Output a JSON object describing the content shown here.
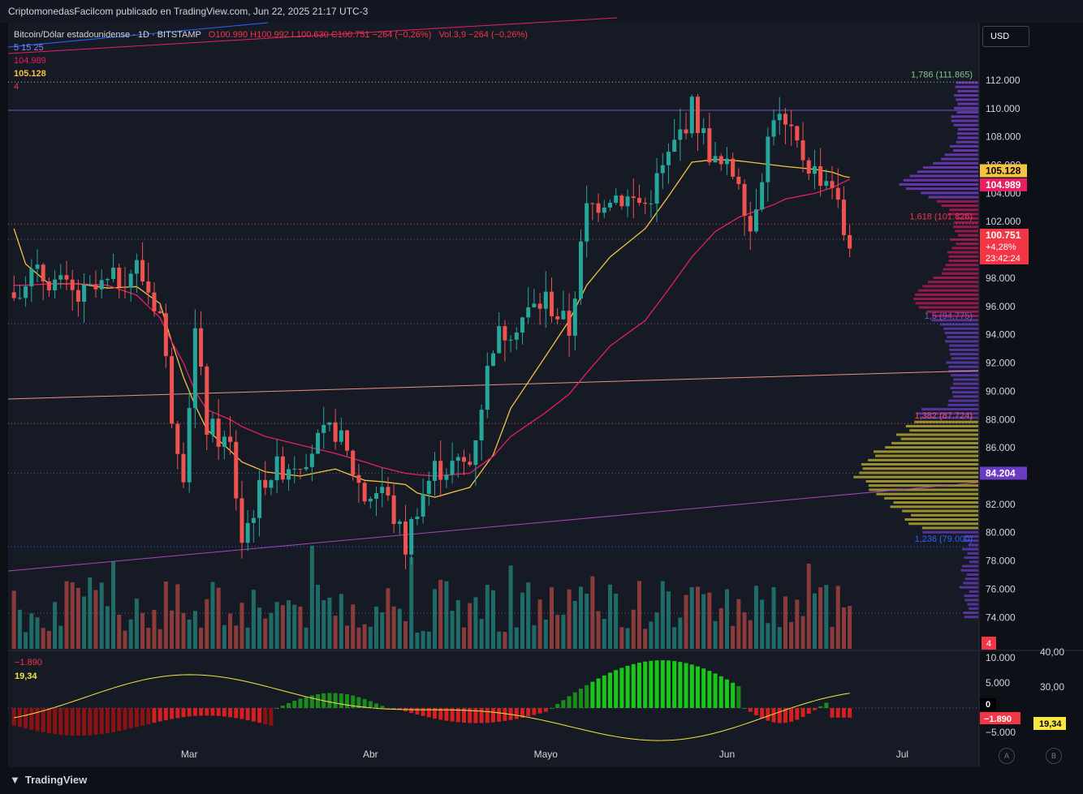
{
  "header": {
    "published_text": "CriptomonedasFacilcom publicado en TradingView.com, Jun 22, 2025 21:17 UTC-3"
  },
  "legend": {
    "symbol": "Bitcoin/Dólar estadounidense · 1D · BITSTAMP",
    "ohlc": "O100.990  H100.992  L100.630  C100.751  −264 (−0,26%)",
    "volume": "Vol.3,9  −264 (−0,26%)",
    "indicator_params": "5  15  25",
    "ma_slow_value": "104.989",
    "ma_fast_value": "105.128",
    "extra_value": "4"
  },
  "currency_button": "USD",
  "price_axis": {
    "ticks": [
      "112.000",
      "110.000",
      "108.000",
      "106.000",
      "104.000",
      "102.000",
      "100.000",
      "98.000",
      "96.000",
      "94.000",
      "92.000",
      "90.000",
      "88.000",
      "86.000",
      "84.000",
      "82.000",
      "80.000",
      "78.000",
      "76.000",
      "74.000"
    ],
    "badges": {
      "ma_fast": "105.128",
      "ma_slow": "104.989",
      "last_price": "100.751",
      "last_change": "+4,28%",
      "countdown": "23:42:24",
      "poc": "84.204",
      "extra": "4"
    }
  },
  "fib_levels": [
    {
      "label": "1,786 (111.865)",
      "value": 111865,
      "color": "#81c784"
    },
    {
      "label": "1,618 (101.826)",
      "value": 101826,
      "color": "#f23645"
    },
    {
      "label": "1,5 (94.775)",
      "value": 94775,
      "color": "#7e57c2"
    },
    {
      "label": "1,382 (87.724)",
      "value": 87724,
      "color": "#f7525f"
    },
    {
      "label": "1,236 (79.000)",
      "value": 79000,
      "color": "#2962ff"
    }
  ],
  "time_axis": [
    "Mar",
    "Abr",
    "Mayo",
    "Jun",
    "Jul"
  ],
  "oscillator": {
    "value_label": "−1.890",
    "signal_label": "19,34",
    "axis_left": [
      "10.000",
      "5.000",
      "0",
      "−5.000"
    ],
    "axis_right": [
      "40,00",
      "30,00"
    ],
    "badge_value": "−1.890",
    "badge_signal": "19,34",
    "badge_zero": "0"
  },
  "footer": {
    "brand": "TradingView",
    "scale_a": "A",
    "scale_b": "B"
  },
  "colors": {
    "up": "#26a69a",
    "down": "#ef5350",
    "ma_fast": "#f5c342",
    "ma_slow": "#e91e63",
    "bg": "#161a25"
  },
  "chart_data": {
    "type": "candlestick",
    "title": "Bitcoin/Dólar estadounidense · 1D · BITSTAMP",
    "ylim": [
      73500,
      112800
    ],
    "x": [
      "2025-01-30",
      "2025-02-01",
      "2025-02-05",
      "2025-02-10",
      "2025-02-15",
      "2025-02-20",
      "2025-02-24",
      "2025-02-26",
      "2025-02-28",
      "2025-03-02",
      "2025-03-04",
      "2025-03-08",
      "2025-03-10",
      "2025-03-14",
      "2025-03-20",
      "2025-03-26",
      "2025-03-31",
      "2025-04-03",
      "2025-04-07",
      "2025-04-09",
      "2025-04-12",
      "2025-04-18",
      "2025-04-22",
      "2025-04-25",
      "2025-05-01",
      "2025-05-05",
      "2025-05-08",
      "2025-05-12",
      "2025-05-18",
      "2025-05-22",
      "2025-05-26",
      "2025-05-30",
      "2025-06-03",
      "2025-06-05",
      "2025-06-09",
      "2025-06-11",
      "2025-06-16",
      "2025-06-19",
      "2025-06-21",
      "2025-06-22"
    ],
    "close": [
      97000,
      98200,
      98000,
      96500,
      97500,
      98800,
      95500,
      88500,
      84500,
      94200,
      87500,
      86000,
      79500,
      84000,
      85300,
      87300,
      82500,
      83200,
      79000,
      82000,
      84500,
      84900,
      93500,
      94600,
      96500,
      94300,
      102800,
      104000,
      103200,
      106500,
      110000,
      106000,
      105300,
      101500,
      109800,
      108400,
      105500,
      104800,
      101200,
      100751
    ],
    "ma_fast": [
      101500,
      99000,
      97600,
      97600,
      97300,
      97400,
      96200,
      93500,
      91000,
      89000,
      87300,
      85800,
      85000,
      84300,
      84000,
      84500,
      83700,
      83600,
      83400,
      82800,
      82500,
      83200,
      85500,
      88800,
      92500,
      95000,
      97500,
      99500,
      101500,
      103800,
      106200,
      106400,
      106300,
      106200,
      106000,
      105900,
      105700,
      105500,
      105200,
      105128
    ],
    "ma_slow": [
      97500,
      97500,
      97600,
      97600,
      97500,
      96800,
      95200,
      93500,
      92000,
      90000,
      88700,
      88000,
      87500,
      86800,
      86200,
      85600,
      85000,
      84600,
      84200,
      84100,
      84000,
      84200,
      85400,
      86800,
      88500,
      89800,
      91300,
      93200,
      95000,
      97200,
      99500,
      101300,
      102300,
      102600,
      103200,
      103600,
      104000,
      104400,
      104800,
      104989
    ]
  }
}
